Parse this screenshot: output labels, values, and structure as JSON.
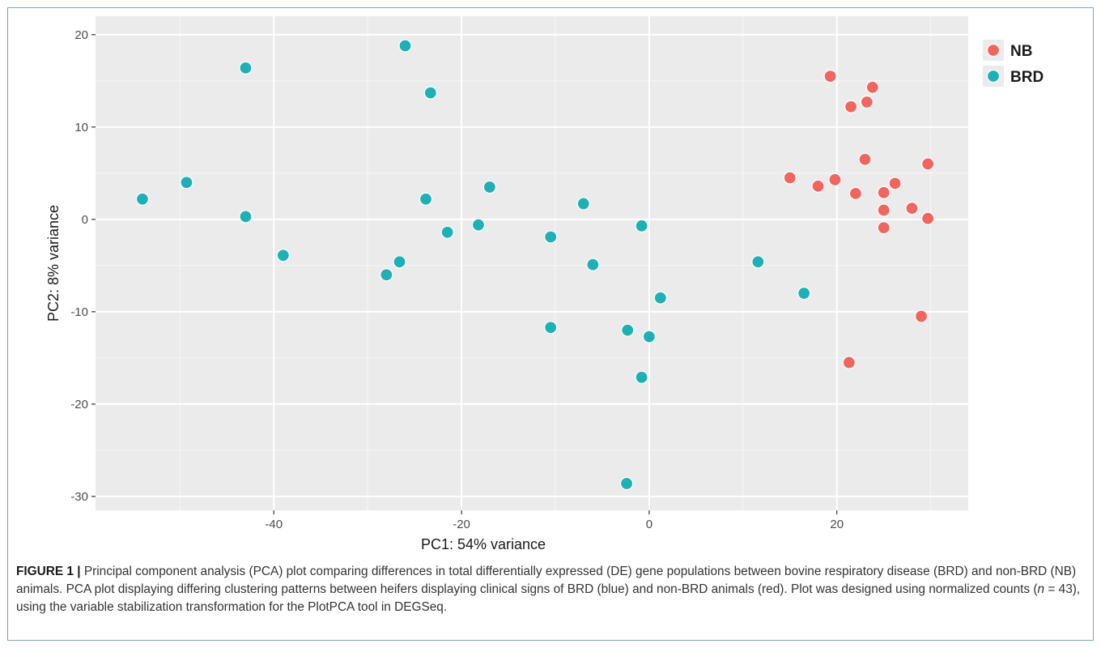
{
  "chart_data": {
    "type": "scatter",
    "xlabel": "PC1: 54% variance",
    "ylabel": "PC2: 8% variance",
    "xlim": [
      -59,
      34
    ],
    "ylim": [
      -31.5,
      22
    ],
    "grid": true,
    "legend_position": "top-right",
    "x_ticks": [
      -40,
      -20,
      0,
      20
    ],
    "y_ticks": [
      20,
      10,
      0,
      -10,
      -20,
      -30
    ],
    "series": [
      {
        "name": "NB",
        "color": "#f0665e",
        "points": [
          [
            19.3,
            15.5
          ],
          [
            23.8,
            14.3
          ],
          [
            21.5,
            12.2
          ],
          [
            23.2,
            12.7
          ],
          [
            23.0,
            6.5
          ],
          [
            29.7,
            6.0
          ],
          [
            15.0,
            4.5
          ],
          [
            19.8,
            4.3
          ],
          [
            18.0,
            3.6
          ],
          [
            22.0,
            2.8
          ],
          [
            25.0,
            2.9
          ],
          [
            26.2,
            3.9
          ],
          [
            25.0,
            1.0
          ],
          [
            28.0,
            1.2
          ],
          [
            29.7,
            0.1
          ],
          [
            25.0,
            -0.9
          ],
          [
            29.0,
            -10.5
          ],
          [
            21.3,
            -15.5
          ]
        ]
      },
      {
        "name": "BRD",
        "color": "#1fb0b5",
        "points": [
          [
            -26.0,
            18.8
          ],
          [
            -43.0,
            16.4
          ],
          [
            -23.3,
            13.7
          ],
          [
            -54.0,
            2.2
          ],
          [
            -49.3,
            4.0
          ],
          [
            -43.0,
            0.3
          ],
          [
            -39.0,
            -3.9
          ],
          [
            -23.8,
            2.2
          ],
          [
            -17.0,
            3.5
          ],
          [
            -21.5,
            -1.4
          ],
          [
            -18.2,
            -0.6
          ],
          [
            -28.0,
            -6.0
          ],
          [
            -26.6,
            -4.6
          ],
          [
            -10.5,
            -1.9
          ],
          [
            -7.0,
            1.7
          ],
          [
            -6.0,
            -4.9
          ],
          [
            -0.8,
            -0.7
          ],
          [
            -10.5,
            -11.7
          ],
          [
            1.2,
            -8.5
          ],
          [
            -2.3,
            -12.0
          ],
          [
            0.0,
            -12.7
          ],
          [
            -0.8,
            -17.1
          ],
          [
            -2.4,
            -28.6
          ],
          [
            11.6,
            -4.6
          ],
          [
            16.5,
            -8.0
          ]
        ]
      }
    ]
  },
  "caption": {
    "label": "FIGURE 1 |",
    "text_1": " Principal component analysis (PCA) plot comparing differences in total differentially expressed (DE) gene populations between bovine respiratory disease (BRD) and non-BRD (NB) animals. PCA plot displaying differing clustering patterns between heifers displaying clinical signs of BRD (blue) and non-BRD animals (red). Plot was designed using normalized counts (",
    "n_symbol": "n",
    "text_2": " = 43), using the variable stabilization transformation for the PlotPCA tool in DEGSeq."
  }
}
